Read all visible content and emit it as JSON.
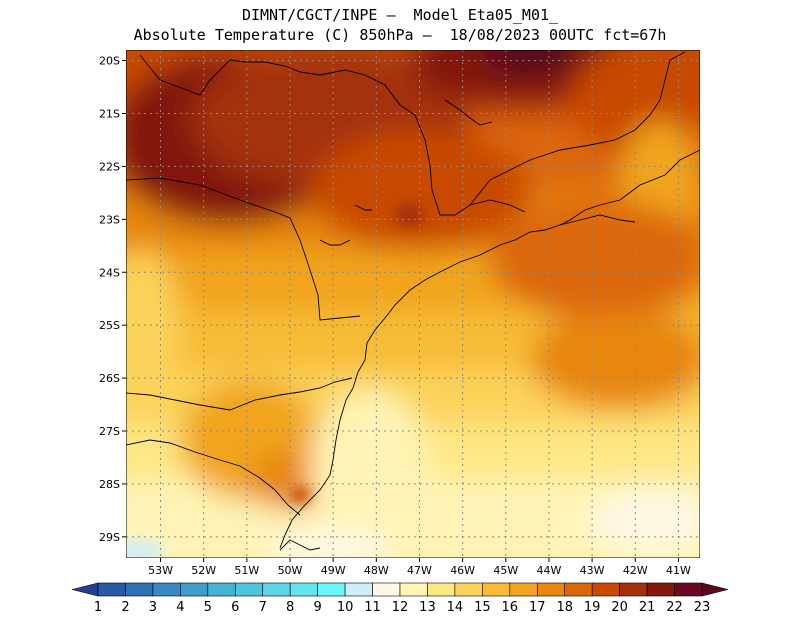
{
  "header": {
    "line1": "DIMNT/CGCT/INPE –  Model Eta05_M01_",
    "line2": "Absolute Temperature (C) 850hPa –  18/08/2023 00UTC fct=67h"
  },
  "map": {
    "lat_labels": [
      "20S",
      "21S",
      "22S",
      "23S",
      "24S",
      "25S",
      "26S",
      "27S",
      "28S",
      "29S"
    ],
    "lon_labels": [
      "53W",
      "52W",
      "51W",
      "50W",
      "49W",
      "48W",
      "47W",
      "46W",
      "45W",
      "44W",
      "43W",
      "42W",
      "41W"
    ],
    "extent": {
      "lon": [
        -53.8,
        -40.5
      ],
      "lat": [
        -29.4,
        -19.8
      ]
    }
  },
  "colorbar": {
    "labels": [
      "1",
      "2",
      "3",
      "4",
      "5",
      "6",
      "7",
      "8",
      "9",
      "10",
      "11",
      "12",
      "13",
      "14",
      "15",
      "16",
      "17",
      "18",
      "19",
      "20",
      "21",
      "22",
      "23"
    ],
    "colors": [
      "#24408e",
      "#2a59a6",
      "#3171b5",
      "#3a88c2",
      "#3f9ecb",
      "#45b3d3",
      "#4ec6dc",
      "#5ad6e6",
      "#66e4ee",
      "#6cf6fb",
      "#cdeef7",
      "#fff8e6",
      "#fff4b6",
      "#fee785",
      "#fbd35a",
      "#f7bb35",
      "#f1a41d",
      "#e8860f",
      "#dc6708",
      "#c84a05",
      "#a33009",
      "#82180e",
      "#6a0a22",
      "#570a1c"
    ]
  }
}
